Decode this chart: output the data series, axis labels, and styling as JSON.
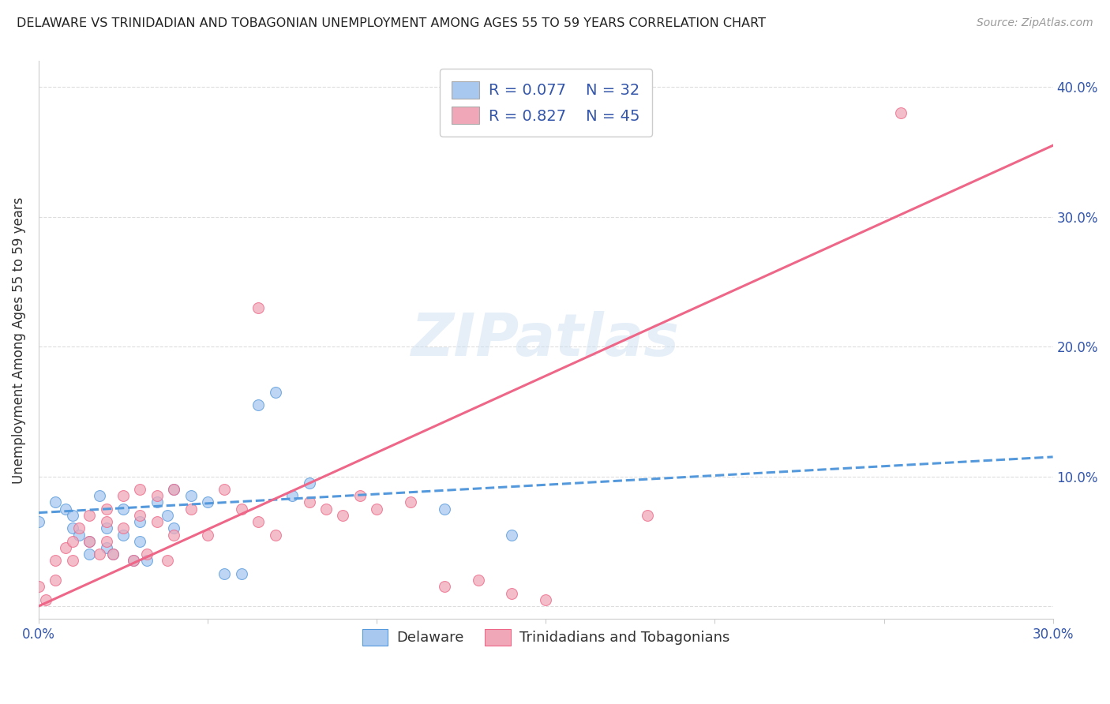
{
  "title": "DELAWARE VS TRINIDADIAN AND TOBAGONIAN UNEMPLOYMENT AMONG AGES 55 TO 59 YEARS CORRELATION CHART",
  "source": "Source: ZipAtlas.com",
  "ylabel": "Unemployment Among Ages 55 to 59 years",
  "xlim": [
    0.0,
    0.3
  ],
  "ylim": [
    -0.01,
    0.42
  ],
  "background_color": "#ffffff",
  "grid_color": "#dddddd",
  "watermark": "ZIPatlas",
  "delaware_color": "#a8c8f0",
  "trinidadian_color": "#f0a8b8",
  "delaware_line_color": "#5599dd",
  "trinidadian_line_color": "#ee6688",
  "tick_label_color": "#3355aa",
  "title_color": "#222222",
  "source_color": "#999999",
  "ylabel_color": "#333333",
  "legend_R1": "R = 0.077",
  "legend_N1": "N = 32",
  "legend_R2": "R = 0.827",
  "legend_N2": "N = 45",
  "delaware_scatter_x": [
    0.0,
    0.005,
    0.008,
    0.01,
    0.01,
    0.012,
    0.015,
    0.015,
    0.018,
    0.02,
    0.02,
    0.022,
    0.025,
    0.025,
    0.028,
    0.03,
    0.03,
    0.032,
    0.035,
    0.038,
    0.04,
    0.04,
    0.045,
    0.05,
    0.055,
    0.06,
    0.065,
    0.07,
    0.075,
    0.08,
    0.12,
    0.14
  ],
  "delaware_scatter_y": [
    0.065,
    0.08,
    0.075,
    0.07,
    0.06,
    0.055,
    0.05,
    0.04,
    0.085,
    0.06,
    0.045,
    0.04,
    0.075,
    0.055,
    0.035,
    0.065,
    0.05,
    0.035,
    0.08,
    0.07,
    0.09,
    0.06,
    0.085,
    0.08,
    0.025,
    0.025,
    0.155,
    0.165,
    0.085,
    0.095,
    0.075,
    0.055
  ],
  "trinidadian_scatter_x": [
    0.0,
    0.002,
    0.005,
    0.005,
    0.008,
    0.01,
    0.01,
    0.012,
    0.015,
    0.015,
    0.018,
    0.02,
    0.02,
    0.02,
    0.022,
    0.025,
    0.025,
    0.028,
    0.03,
    0.03,
    0.032,
    0.035,
    0.035,
    0.038,
    0.04,
    0.04,
    0.045,
    0.05,
    0.055,
    0.06,
    0.065,
    0.065,
    0.07,
    0.08,
    0.085,
    0.09,
    0.095,
    0.1,
    0.11,
    0.12,
    0.13,
    0.14,
    0.15,
    0.18,
    0.255
  ],
  "trinidadian_scatter_y": [
    0.015,
    0.005,
    0.035,
    0.02,
    0.045,
    0.05,
    0.035,
    0.06,
    0.07,
    0.05,
    0.04,
    0.075,
    0.065,
    0.05,
    0.04,
    0.085,
    0.06,
    0.035,
    0.09,
    0.07,
    0.04,
    0.085,
    0.065,
    0.035,
    0.09,
    0.055,
    0.075,
    0.055,
    0.09,
    0.075,
    0.23,
    0.065,
    0.055,
    0.08,
    0.075,
    0.07,
    0.085,
    0.075,
    0.08,
    0.015,
    0.02,
    0.01,
    0.005,
    0.07,
    0.38
  ],
  "delaware_trendline_x": [
    0.0,
    0.3
  ],
  "delaware_trendline_y": [
    0.072,
    0.115
  ],
  "trinidadian_trendline_x": [
    0.0,
    0.3
  ],
  "trinidadian_trendline_y": [
    0.0,
    0.355
  ]
}
